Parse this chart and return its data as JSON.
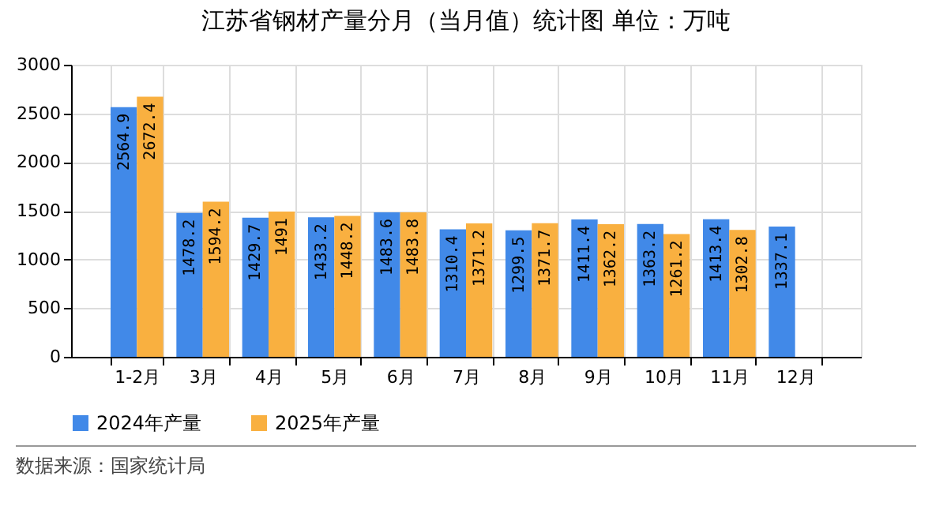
{
  "chart_data": {
    "type": "bar",
    "title": "江苏省钢材产量分月（当月值）统计图 单位：万吨",
    "categories": [
      "1-2月",
      "3月",
      "4月",
      "5月",
      "6月",
      "7月",
      "8月",
      "9月",
      "10月",
      "11月",
      "12月"
    ],
    "series": [
      {
        "name": "2024年产量",
        "color": "#4189e8",
        "values": [
          2564.9,
          1478.2,
          1429.7,
          1433.2,
          1483.6,
          1310.4,
          1299.5,
          1411.4,
          1363.2,
          1413.4,
          1337.1
        ]
      },
      {
        "name": "2025年产量",
        "color": "#f9b040",
        "values": [
          2672.4,
          1594.2,
          1491,
          1448.2,
          1483.8,
          1371.2,
          1371.7,
          1362.2,
          1261.2,
          1302.8,
          null
        ]
      }
    ],
    "ylim": [
      0,
      3000
    ],
    "yticks": [
      0,
      500,
      1000,
      1500,
      2000,
      2500,
      3000
    ],
    "grid": true,
    "legend": "bottom",
    "data_labels": true,
    "annotations": [
      "数据来源：国家统计局"
    ]
  }
}
